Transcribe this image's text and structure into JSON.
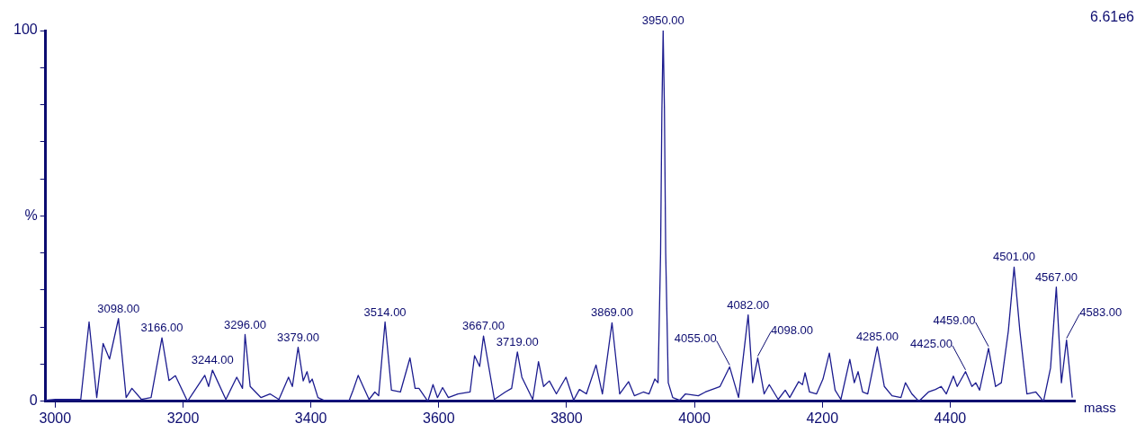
{
  "chart_data": {
    "type": "line",
    "xlabel": "mass",
    "x": [
      2985,
      3000,
      3040,
      3053,
      3065,
      3075,
      3085,
      3099,
      3111,
      3120,
      3135,
      3150,
      3167,
      3178,
      3188,
      3207,
      3234,
      3240,
      3246,
      3267,
      3284,
      3293,
      3297,
      3305,
      3322,
      3336,
      3350,
      3365,
      3371,
      3380,
      3388,
      3394,
      3398,
      3402,
      3411,
      3420,
      3460,
      3466,
      3474,
      3483,
      3491,
      3500,
      3506,
      3516,
      3526,
      3540,
      3555,
      3563,
      3569,
      3583,
      3591,
      3598,
      3606,
      3615,
      3630,
      3649,
      3656,
      3664,
      3670,
      3687,
      3704,
      3714,
      3723,
      3730,
      3747,
      3756,
      3764,
      3773,
      3784,
      3799,
      3811,
      3820,
      3831,
      3846,
      3856,
      3871,
      3883,
      3897,
      3906,
      3920,
      3929,
      3938,
      3943,
      3947,
      3949,
      3951,
      3953,
      3955,
      3959,
      3966,
      3977,
      3986,
      4006,
      4017,
      4040,
      4055,
      4069,
      4084,
      4091,
      4099,
      4109,
      4117,
      4131,
      4142,
      4149,
      4163,
      4169,
      4173,
      4180,
      4191,
      4201,
      4211,
      4220,
      4229,
      4243,
      4250,
      4256,
      4263,
      4271,
      4286,
      4297,
      4309,
      4323,
      4330,
      4340,
      4351,
      4366,
      4377,
      4386,
      4394,
      4405,
      4411,
      4424,
      4434,
      4440,
      4446,
      4460,
      4471,
      4480,
      4491,
      4500,
      4509,
      4520,
      4534,
      4546,
      4557,
      4566,
      4574,
      4582,
      4591
    ],
    "series": [
      {
        "color": "#1c1c8f",
        "values": [
          0.3,
          0.5,
          0.5,
          21.4,
          1,
          15.6,
          11.4,
          22.3,
          1,
          3.5,
          0.5,
          1,
          17.1,
          5.6,
          6.9,
          0,
          7,
          4,
          8.4,
          0.5,
          6.5,
          3.5,
          18,
          4,
          1,
          2,
          0.5,
          6.5,
          4,
          14.6,
          5.5,
          8,
          5,
          6,
          1,
          0.3,
          0.3,
          3,
          7,
          3.5,
          0.5,
          2.5,
          1.5,
          21.4,
          3,
          2.5,
          11.7,
          3.5,
          3.5,
          0,
          4.5,
          1,
          3.7,
          1,
          2,
          2.5,
          12.3,
          9.4,
          17.6,
          0.5,
          2.5,
          3.5,
          13.3,
          6.5,
          0.5,
          10.7,
          4,
          5.5,
          2,
          6.5,
          0.3,
          3.2,
          2,
          9.8,
          2,
          21.2,
          2,
          5.3,
          1.5,
          2.5,
          2,
          6,
          5,
          40,
          78,
          100,
          79,
          40,
          5,
          1,
          0.3,
          2,
          1.5,
          2.5,
          4,
          9.3,
          1,
          23.3,
          5,
          11.7,
          2,
          4.5,
          0.5,
          3,
          1,
          5.3,
          4.5,
          7.7,
          2.5,
          2,
          6,
          13,
          3,
          0.5,
          11.3,
          5,
          8,
          2.5,
          2,
          14.7,
          4,
          1.5,
          1,
          5,
          2,
          0,
          2.5,
          3.2,
          4,
          2,
          6.8,
          4,
          8,
          4,
          5,
          3,
          14.3,
          4,
          5,
          19,
          36.2,
          19,
          2,
          2.5,
          0,
          9,
          30.8,
          5,
          16.5,
          1
        ]
      }
    ],
    "xlim": [
      2985,
      4595
    ],
    "xticks": [
      3000,
      3200,
      3400,
      3600,
      3800,
      4000,
      4200,
      4400
    ],
    "ylim": [
      0,
      100
    ],
    "yticks": [
      0,
      {
        "value": 10,
        "label": null
      },
      {
        "value": 20,
        "label": null
      },
      {
        "value": 30,
        "label": null
      },
      {
        "value": 40,
        "label": null
      },
      {
        "value": 50,
        "label": "%"
      },
      {
        "value": 60,
        "label": null
      },
      {
        "value": 70,
        "label": null
      },
      {
        "value": 80,
        "label": null
      },
      {
        "value": 90,
        "label": null
      },
      100
    ],
    "grid": false,
    "legend": false,
    "marker": "none",
    "line_style": "solid",
    "annotations": [
      "6.61e6",
      {
        "text": "3950.00",
        "x": 3951,
        "y": 100
      },
      {
        "text": "4501.00",
        "x": 4500,
        "y": 36.2
      },
      {
        "text": "4567.00",
        "x": 4566,
        "y": 30.8
      },
      {
        "text": "4082.00",
        "x": 4084,
        "y": 23.3
      },
      {
        "text": "3098.00",
        "x": 3099,
        "y": 22.3
      },
      {
        "text": "3514.00",
        "x": 3516,
        "y": 21.4
      },
      {
        "text": "3869.00",
        "x": 3871,
        "y": 21.2
      },
      {
        "text": "3296.00",
        "x": 3297,
        "y": 18
      },
      {
        "text": "3667.00",
        "x": 3670,
        "y": 17.6
      },
      {
        "text": "3166.00",
        "x": 3167,
        "y": 17.1
      },
      {
        "text": "4583.00",
        "x": 4582,
        "y": 16.5
      },
      {
        "text": "4285.00",
        "x": 4286,
        "y": 14.7
      },
      {
        "text": "3379.00",
        "x": 3380,
        "y": 14.6
      },
      {
        "text": "4459.00",
        "x": 4460,
        "y": 14.3
      },
      {
        "text": "3719.00",
        "x": 3723,
        "y": 13.3
      },
      {
        "text": "4098.00",
        "x": 4099,
        "y": 11.7
      },
      {
        "text": "4055.00",
        "x": 4055,
        "y": 9.3
      },
      {
        "text": "3244.00",
        "x": 3246,
        "y": 8.4
      },
      {
        "text": "4425.00",
        "x": 4424,
        "y": 8
      }
    ]
  }
}
